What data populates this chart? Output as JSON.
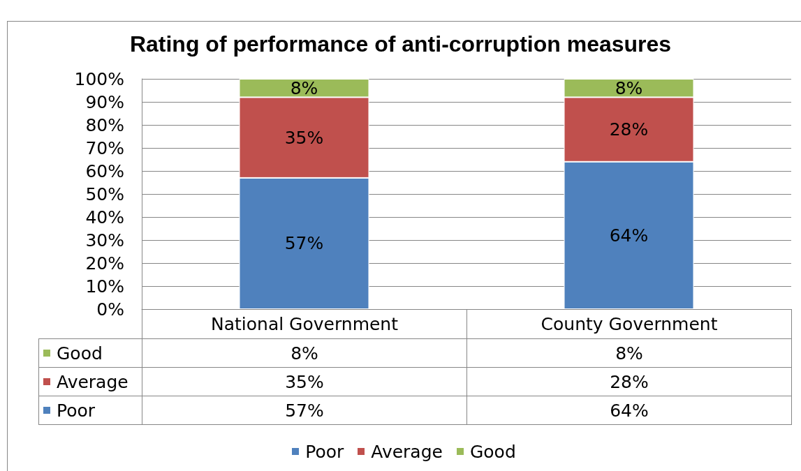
{
  "chart_data": {
    "type": "bar",
    "title": "Rating of performance of anti-corruption measures",
    "categories": [
      "National Government",
      "County Government"
    ],
    "series": [
      {
        "name": "Poor",
        "color": "#4f81bd",
        "values": [
          57,
          64
        ],
        "value_labels": [
          "57%",
          "64%"
        ]
      },
      {
        "name": "Average",
        "color": "#c0504d",
        "values": [
          35,
          28
        ],
        "value_labels": [
          "35%",
          "28%"
        ]
      },
      {
        "name": "Good",
        "color": "#9bbb59",
        "values": [
          8,
          8
        ],
        "value_labels": [
          "8%",
          "8%"
        ]
      }
    ],
    "stacked": true,
    "ylim": [
      0,
      100
    ],
    "yticks": [
      {
        "value": 0,
        "label": "0%"
      },
      {
        "value": 10,
        "label": "10%"
      },
      {
        "value": 20,
        "label": "20%"
      },
      {
        "value": 30,
        "label": "30%"
      },
      {
        "value": 40,
        "label": "40%"
      },
      {
        "value": 50,
        "label": "50%"
      },
      {
        "value": 60,
        "label": "60%"
      },
      {
        "value": 70,
        "label": "70%"
      },
      {
        "value": 80,
        "label": "80%"
      },
      {
        "value": 90,
        "label": "90%"
      },
      {
        "value": 100,
        "label": "100%"
      }
    ],
    "grid": "y",
    "legend": "bottom"
  }
}
